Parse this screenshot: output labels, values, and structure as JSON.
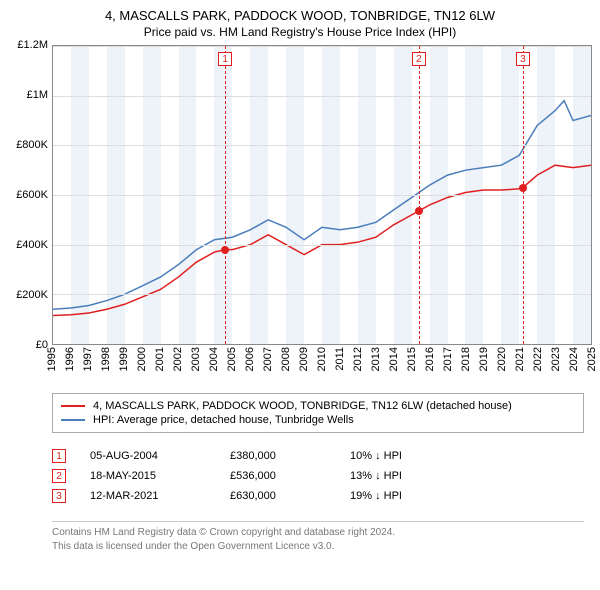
{
  "title": "4, MASCALLS PARK, PADDOCK WOOD, TONBRIDGE, TN12 6LW",
  "subtitle": "Price paid vs. HM Land Registry's House Price Index (HPI)",
  "chart": {
    "type": "line",
    "background_color": "#ffffff",
    "grid_color": "#dddddd",
    "axis_color": "#888888",
    "ylabel_fontsize": 11,
    "xlabel_fontsize": 11,
    "ylim": [
      0,
      1200000
    ],
    "ytick_step": 200000,
    "yticks": [
      "£0",
      "£200K",
      "£400K",
      "£600K",
      "£800K",
      "£1M",
      "£1.2M"
    ],
    "xlim": [
      1995,
      2025
    ],
    "xticks": [
      1995,
      1996,
      1997,
      1998,
      1999,
      2000,
      2001,
      2002,
      2003,
      2004,
      2005,
      2006,
      2007,
      2008,
      2009,
      2010,
      2011,
      2012,
      2013,
      2014,
      2015,
      2016,
      2017,
      2018,
      2019,
      2020,
      2021,
      2022,
      2023,
      2024,
      2025
    ],
    "band_color": "#eef3fa",
    "marker_color": "#e02020",
    "marker_dash": "4 3",
    "line_width": 1.5,
    "series": [
      {
        "name": "property",
        "color": "#e02020",
        "label": "4, MASCALLS PARK, PADDOCK WOOD, TONBRIDGE, TN12 6LW (detached house)",
        "points": [
          [
            1995,
            115000
          ],
          [
            1996,
            118000
          ],
          [
            1997,
            125000
          ],
          [
            1998,
            140000
          ],
          [
            1999,
            160000
          ],
          [
            2000,
            190000
          ],
          [
            2001,
            220000
          ],
          [
            2002,
            270000
          ],
          [
            2003,
            330000
          ],
          [
            2004,
            370000
          ],
          [
            2004.6,
            380000
          ],
          [
            2005,
            380000
          ],
          [
            2006,
            400000
          ],
          [
            2007,
            440000
          ],
          [
            2008,
            400000
          ],
          [
            2009,
            360000
          ],
          [
            2010,
            400000
          ],
          [
            2011,
            400000
          ],
          [
            2012,
            410000
          ],
          [
            2013,
            430000
          ],
          [
            2014,
            480000
          ],
          [
            2015,
            520000
          ],
          [
            2015.4,
            536000
          ],
          [
            2016,
            560000
          ],
          [
            2017,
            590000
          ],
          [
            2018,
            610000
          ],
          [
            2019,
            620000
          ],
          [
            2020,
            620000
          ],
          [
            2021,
            625000
          ],
          [
            2021.2,
            630000
          ],
          [
            2022,
            680000
          ],
          [
            2023,
            720000
          ],
          [
            2024,
            710000
          ],
          [
            2025,
            720000
          ]
        ]
      },
      {
        "name": "hpi",
        "color": "#4a7ebb",
        "label": "HPI: Average price, detached house, Tunbridge Wells",
        "points": [
          [
            1995,
            140000
          ],
          [
            1996,
            145000
          ],
          [
            1997,
            155000
          ],
          [
            1998,
            175000
          ],
          [
            1999,
            200000
          ],
          [
            2000,
            235000
          ],
          [
            2001,
            270000
          ],
          [
            2002,
            320000
          ],
          [
            2003,
            380000
          ],
          [
            2004,
            420000
          ],
          [
            2005,
            430000
          ],
          [
            2006,
            460000
          ],
          [
            2007,
            500000
          ],
          [
            2008,
            470000
          ],
          [
            2009,
            420000
          ],
          [
            2010,
            470000
          ],
          [
            2011,
            460000
          ],
          [
            2012,
            470000
          ],
          [
            2013,
            490000
          ],
          [
            2014,
            540000
          ],
          [
            2015,
            590000
          ],
          [
            2016,
            640000
          ],
          [
            2017,
            680000
          ],
          [
            2018,
            700000
          ],
          [
            2019,
            710000
          ],
          [
            2020,
            720000
          ],
          [
            2021,
            760000
          ],
          [
            2022,
            880000
          ],
          [
            2023,
            940000
          ],
          [
            2023.5,
            980000
          ],
          [
            2024,
            900000
          ],
          [
            2025,
            920000
          ]
        ]
      }
    ],
    "sale_markers": [
      {
        "num": "1",
        "year": 2004.6,
        "value": 380000
      },
      {
        "num": "2",
        "year": 2015.4,
        "value": 536000
      },
      {
        "num": "3",
        "year": 2021.2,
        "value": 630000
      }
    ]
  },
  "legend": {
    "rows": [
      {
        "color": "#e02020",
        "label": "4, MASCALLS PARK, PADDOCK WOOD, TONBRIDGE, TN12 6LW (detached house)"
      },
      {
        "color": "#4a7ebb",
        "label": "HPI: Average price, detached house, Tunbridge Wells"
      }
    ]
  },
  "sales": [
    {
      "num": "1",
      "date": "05-AUG-2004",
      "price": "£380,000",
      "delta": "10% ↓ HPI"
    },
    {
      "num": "2",
      "date": "18-MAY-2015",
      "price": "£536,000",
      "delta": "13% ↓ HPI"
    },
    {
      "num": "3",
      "date": "12-MAR-2021",
      "price": "£630,000",
      "delta": "19% ↓ HPI"
    }
  ],
  "footer": {
    "line1": "Contains HM Land Registry data © Crown copyright and database right 2024.",
    "line2": "This data is licensed under the Open Government Licence v3.0."
  }
}
